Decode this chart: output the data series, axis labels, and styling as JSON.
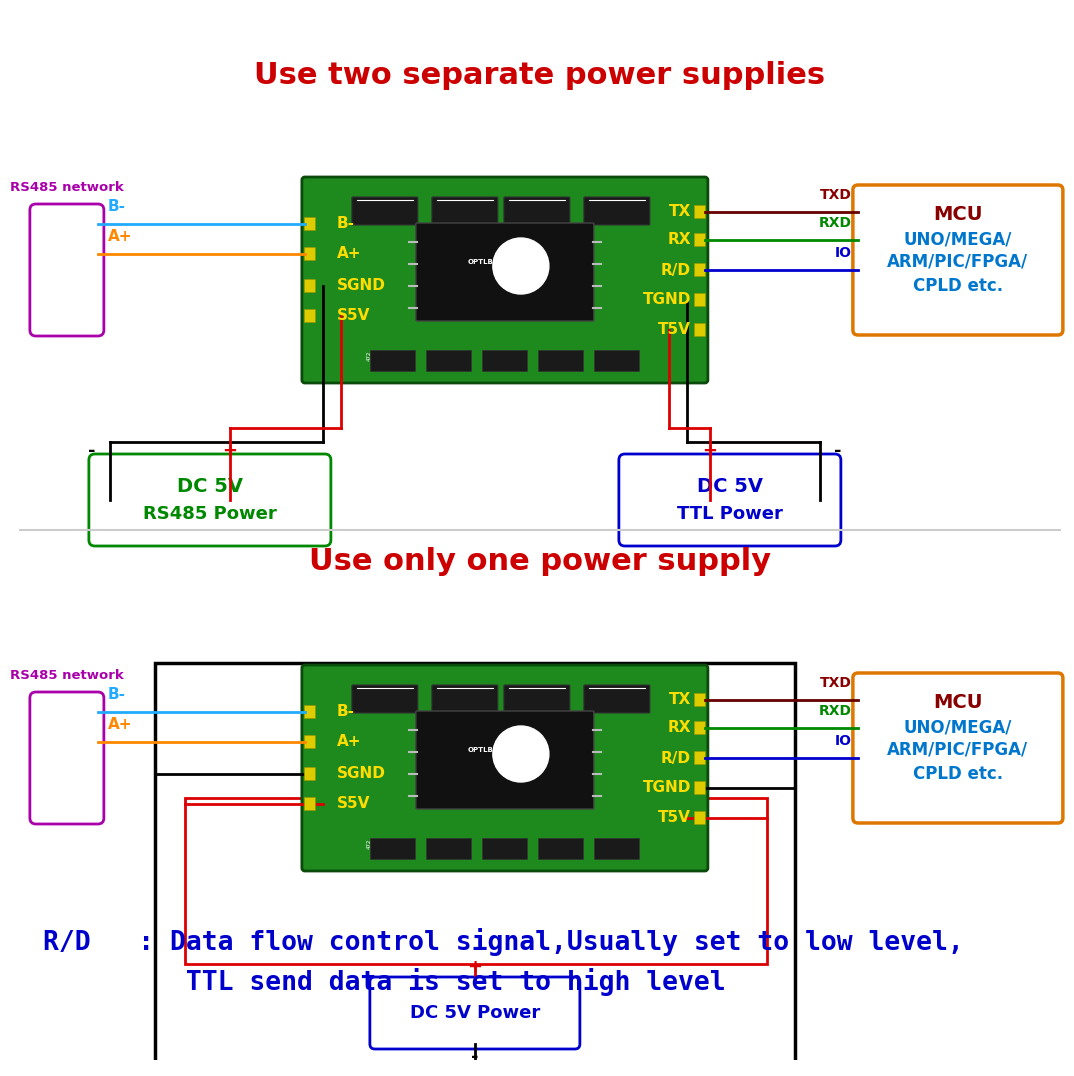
{
  "title1": "Use two separate power supplies",
  "title2": "Use only one power supply",
  "title_color": "#cc0000",
  "title_fontsize": 22,
  "bg_color": "#ffffff",
  "rs485_label": "RS485 network",
  "rs485_box_color": "#aa00aa",
  "mcu_box_color": "#dd7700",
  "mcu_title_color": "#880000",
  "mcu_text_color": "#0077cc",
  "dc5v_rs485_color": "#008800",
  "dc5v_ttl_color": "#0000cc",
  "dc5v_single_color": "#0000cc",
  "board_label_color": "#ffdd00",
  "wire_B_minus": "#22aaff",
  "wire_A_plus": "#ff8800",
  "wire_black": "#000000",
  "wire_red": "#dd0000",
  "wire_TX": "#660000",
  "wire_RX": "#008800",
  "wire_RD": "#0000cc",
  "label_TXD_color": "#880000",
  "label_RXD_color": "#008800",
  "label_IO_color": "#0000cc",
  "note_line1": "R/D   : Data flow control signal,Usually set to low level,",
  "note_line2": "         TTL send data is set to high level",
  "note_color": "#0000cc",
  "note_fontsize": 19,
  "divider_color": "#cccccc",
  "board_green_dark": "#166016",
  "board_green_light": "#1e8a1e",
  "board_edge": "#0a4a0a",
  "ic_color": "#111111",
  "comp_color": "#1a1a1a",
  "pad_color": "#ddcc00"
}
